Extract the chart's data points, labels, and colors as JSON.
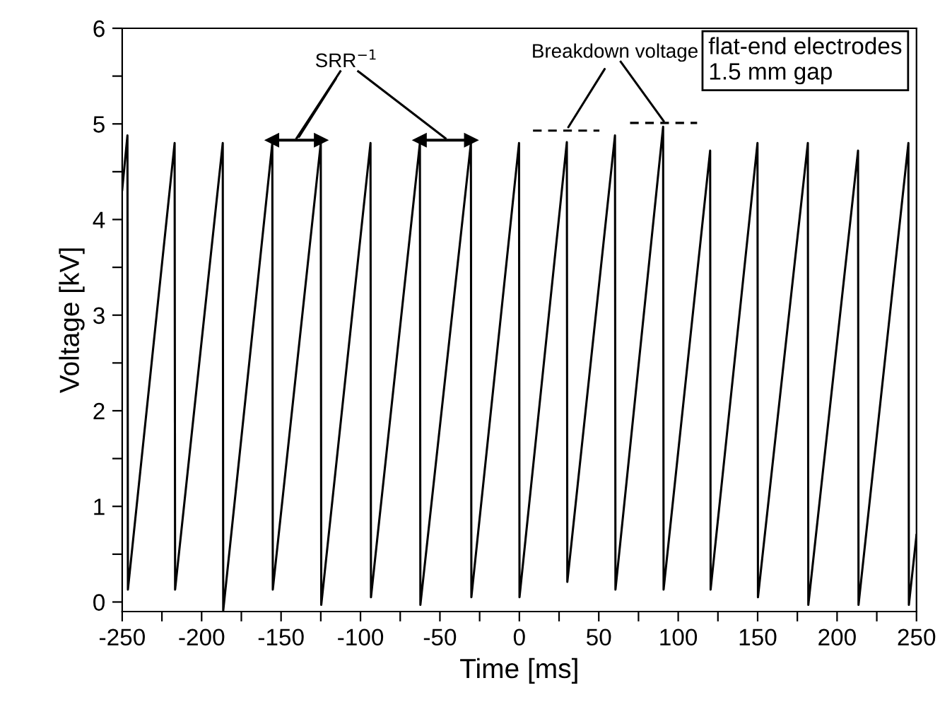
{
  "chart_data": {
    "type": "line",
    "xlabel": "Time [ms]",
    "ylabel": "Voltage [kV]",
    "xlim": [
      -250,
      250
    ],
    "ylim": [
      -0.1,
      6
    ],
    "xticks": [
      -250,
      {
        "value": -225,
        "label": null
      },
      -200,
      {
        "value": -175,
        "label": null
      },
      -150,
      {
        "value": -125,
        "label": null
      },
      -100,
      {
        "value": -75,
        "label": null
      },
      -50,
      {
        "value": -25,
        "label": null
      },
      0,
      {
        "value": 25,
        "label": null
      },
      50,
      {
        "value": 75,
        "label": null
      },
      100,
      {
        "value": 125,
        "label": null
      },
      150,
      {
        "value": 175,
        "label": null
      },
      200,
      {
        "value": 225,
        "label": null
      },
      250
    ],
    "yticks": [
      0,
      {
        "value": 0.5,
        "label": null
      },
      1,
      {
        "value": 1.5,
        "label": null
      },
      2,
      {
        "value": 2.5,
        "label": null
      },
      3,
      {
        "value": 3.5,
        "label": null
      },
      4,
      {
        "value": 4.5,
        "label": null
      },
      5,
      {
        "value": 5.5,
        "label": null
      },
      6
    ],
    "grid": false,
    "legend": false,
    "annotations": [
      {
        "text": "SRR$^{−1}$",
        "x": -140,
        "y": 4.83
      },
      {
        "text": "Breakdown voltage",
        "x": 29.5,
        "y": 4.93
      },
      "flat-end electrodes\n1.5 mm gap"
    ],
    "series": [
      {
        "color": "#000000",
        "line_style": "solid",
        "x": [
          -250,
          -246.7,
          -246.4,
          -217,
          -216.7,
          -186.7,
          -186.4,
          -155.5,
          -155.2,
          -125,
          -124.7,
          -93.7,
          -93.4,
          -62.6,
          -62.3,
          -30.5,
          -30.2,
          -0.2,
          0.1,
          29.9,
          30.2,
          60.2,
          60.5,
          90.5,
          90.8,
          120.1,
          120.4,
          149.9,
          150.2,
          181.6,
          181.9,
          213.2,
          213.5,
          244.9,
          245.2,
          250
        ],
        "values": [
          4.31,
          4.88,
          0.13,
          4.8,
          0.13,
          4.8,
          -0.09,
          4.8,
          0.13,
          4.8,
          -0.03,
          4.8,
          0.05,
          4.8,
          -0.03,
          4.8,
          0.05,
          4.8,
          0.05,
          4.81,
          0.21,
          4.88,
          0.13,
          4.97,
          0.13,
          4.72,
          0.13,
          4.8,
          0.05,
          4.8,
          -0.03,
          4.72,
          -0.03,
          4.8,
          -0.03,
          0.7
        ]
      },
      {
        "color": "#000000",
        "line_style": "solid",
        "marker": "triangle",
        "x": [
          -155.5,
          -125
        ],
        "values": [
          4.83,
          4.83
        ]
      },
      {
        "color": "#000000",
        "line_style": "solid",
        "marker": "triangle",
        "x": [
          -62.6,
          -30.5
        ],
        "values": [
          4.83,
          4.83
        ]
      },
      {
        "color": "#000000",
        "line_style": "dashed",
        "x": [
          8.6,
          50.4
        ],
        "values": [
          4.93,
          4.93
        ]
      },
      {
        "color": "#000000",
        "line_style": "dashed",
        "x": [
          69.7,
          111.9
        ],
        "values": [
          5.01,
          5.01
        ]
      }
    ]
  }
}
